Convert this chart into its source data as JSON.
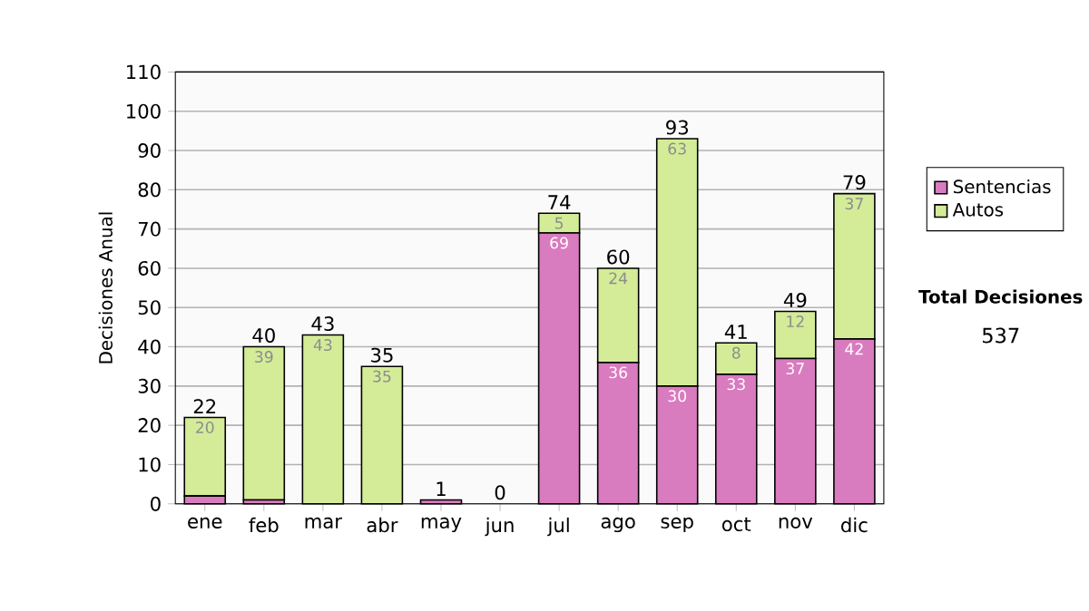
{
  "chart_data": {
    "type": "bar",
    "stacked": true,
    "ylabel": "Decisiones Anual",
    "categories": [
      "ene",
      "feb",
      "mar",
      "abr",
      "may",
      "jun",
      "jul",
      "ago",
      "sep",
      "oct",
      "nov",
      "dic"
    ],
    "series": [
      {
        "name": "Sentencias",
        "color": "#d97bbf",
        "values": [
          2,
          1,
          0,
          0,
          1,
          0,
          69,
          36,
          30,
          33,
          37,
          42
        ],
        "value_labels": [
          null,
          null,
          null,
          null,
          null,
          null,
          "69",
          "36",
          "30",
          "33",
          "37",
          "42"
        ]
      },
      {
        "name": "Autos",
        "color": "#d4ec98",
        "values": [
          20,
          39,
          43,
          35,
          0,
          0,
          5,
          24,
          63,
          8,
          12,
          37
        ],
        "value_labels": [
          "20",
          "39",
          "43",
          "35",
          null,
          null,
          "5",
          "24",
          "63",
          "8",
          "12",
          "37"
        ]
      }
    ],
    "totals": [
      "22",
      "40",
      "43",
      "35",
      "1",
      "0",
      "74",
      "60",
      "93",
      "41",
      "49",
      "79"
    ],
    "ylim": [
      0,
      110
    ],
    "yticks": [
      0,
      10,
      20,
      30,
      40,
      50,
      60,
      70,
      80,
      90,
      100,
      110
    ],
    "grid": "y",
    "legend": "right",
    "annotations": [
      "Total Decisiones",
      "537"
    ]
  }
}
